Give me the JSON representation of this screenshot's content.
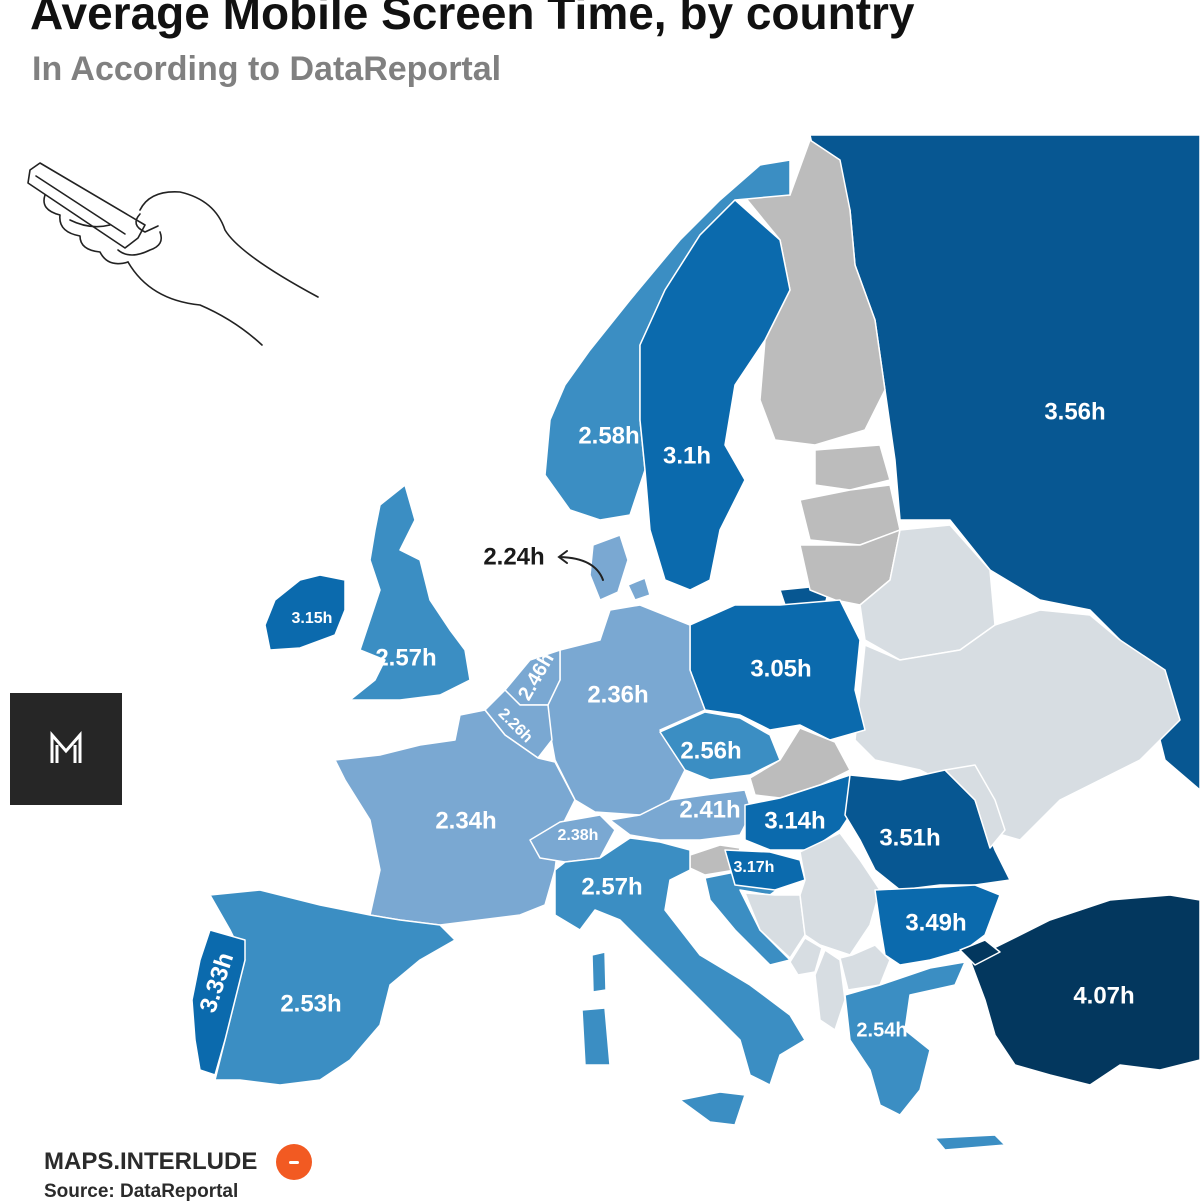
{
  "title": "Average Mobile Screen Time, by country",
  "subtitle": "In According to DataReportal",
  "brand": "MAPS.INTERLUDE",
  "source": "Source: DataReportal",
  "badge_icon": "m-logo-icon",
  "illustration_icon": "hand-holding-phone-icon",
  "colors": {
    "no_data_gray": "#bcbcbc",
    "no_data_light": "#d7dde2",
    "light_blue": "#7aa8d2",
    "mid_blue": "#3b8ec3",
    "blue": "#0b6aad",
    "dark_blue": "#075792",
    "darkest_blue": "#03375e"
  },
  "countries": {
    "russia": "3.56h",
    "turkey": "4.07h",
    "romania": "3.51h",
    "bulgaria": "3.49h",
    "portugal": "3.33h",
    "ireland": "3.15h",
    "hungary": "3.14h",
    "sweden": "3.1h",
    "poland": "3.05h",
    "serbia": "3.17h",
    "norway": "2.58h",
    "uk": "2.57h",
    "italy": "2.57h",
    "czechia": "2.56h",
    "greece": "2.54h",
    "spain": "2.53h",
    "netherlands": "2.46h",
    "austria": "2.41h",
    "switzerland": "2.38h",
    "germany": "2.36h",
    "france": "2.34h",
    "belgium": "2.26h",
    "denmark": "2.24h"
  }
}
